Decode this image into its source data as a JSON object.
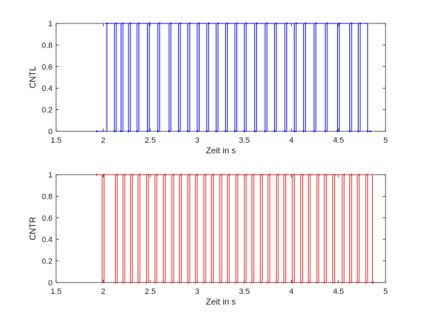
{
  "chart_data": [
    {
      "type": "line",
      "drawstyle": "steps-post",
      "xlabel": "Zeit in s",
      "ylabel": "CNTL",
      "xlim": [
        1.5,
        5
      ],
      "ylim": [
        0,
        1
      ],
      "xticks": [
        1.5,
        2,
        2.5,
        3,
        3.5,
        4,
        4.5,
        5
      ],
      "yticks": [
        0,
        0.2,
        0.4,
        0.6,
        0.8,
        1
      ],
      "series": [
        {
          "color": "#0000ff",
          "x": [
            1.93,
            2.04,
            2.12,
            2.14,
            2.19,
            2.21,
            2.27,
            2.29,
            2.36,
            2.38,
            2.47,
            2.49,
            2.58,
            2.6,
            2.7,
            2.72,
            2.8,
            2.82,
            2.9,
            2.92,
            3.0,
            3.02,
            3.1,
            3.12,
            3.2,
            3.22,
            3.3,
            3.32,
            3.4,
            3.42,
            3.5,
            3.52,
            3.61,
            3.63,
            3.72,
            3.74,
            3.82,
            3.84,
            3.93,
            3.95,
            4.03,
            4.05,
            4.13,
            4.15,
            4.24,
            4.26,
            4.36,
            4.38,
            4.49,
            4.51,
            4.62,
            4.64,
            4.71,
            4.73,
            4.81,
            4.84
          ],
          "values": [
            0,
            1,
            0,
            1,
            0,
            1,
            0,
            1,
            0,
            1,
            0,
            1,
            0,
            1,
            0,
            1,
            0,
            1,
            0,
            1,
            0,
            1,
            0,
            1,
            0,
            1,
            0,
            1,
            0,
            1,
            0,
            1,
            0,
            1,
            0,
            1,
            0,
            1,
            0,
            1,
            0,
            1,
            0,
            1,
            0,
            1,
            0,
            1,
            0,
            1,
            0,
            1,
            0,
            1,
            0,
            0
          ]
        }
      ]
    },
    {
      "type": "line",
      "drawstyle": "steps-post",
      "xlabel": "Zeit in s",
      "ylabel": "CNTR",
      "xlim": [
        1.5,
        5
      ],
      "ylim": [
        0,
        1
      ],
      "xticks": [
        1.5,
        2,
        2.5,
        3,
        3.5,
        4,
        4.5,
        5
      ],
      "yticks": [
        0,
        0.2,
        0.4,
        0.6,
        0.8,
        1
      ],
      "series": [
        {
          "color": "#e02020",
          "x": [
            1.93,
            1.99,
            2.01,
            2.13,
            2.15,
            2.21,
            2.23,
            2.29,
            2.31,
            2.37,
            2.39,
            2.46,
            2.48,
            2.55,
            2.57,
            2.64,
            2.66,
            2.73,
            2.75,
            2.81,
            2.83,
            2.9,
            2.92,
            2.98,
            3.0,
            3.07,
            3.09,
            3.15,
            3.17,
            3.24,
            3.26,
            3.32,
            3.34,
            3.41,
            3.43,
            3.5,
            3.52,
            3.58,
            3.6,
            3.67,
            3.69,
            3.75,
            3.77,
            3.84,
            3.86,
            3.92,
            3.94,
            4.01,
            4.03,
            4.1,
            4.12,
            4.18,
            4.2,
            4.27,
            4.29,
            4.35,
            4.37,
            4.44,
            4.46,
            4.54,
            4.56,
            4.62,
            4.64,
            4.7,
            4.72,
            4.79,
            4.81,
            4.86,
            4.87
          ],
          "values": [
            1,
            0,
            1,
            0,
            1,
            0,
            1,
            0,
            1,
            0,
            1,
            0,
            1,
            0,
            1,
            0,
            1,
            0,
            1,
            0,
            1,
            0,
            1,
            0,
            1,
            0,
            1,
            0,
            1,
            0,
            1,
            0,
            1,
            0,
            1,
            0,
            1,
            0,
            1,
            0,
            1,
            0,
            1,
            0,
            1,
            0,
            1,
            0,
            1,
            0,
            1,
            0,
            1,
            0,
            1,
            0,
            1,
            0,
            1,
            0,
            1,
            0,
            1,
            0,
            1,
            0,
            1,
            0,
            0
          ]
        }
      ]
    }
  ]
}
